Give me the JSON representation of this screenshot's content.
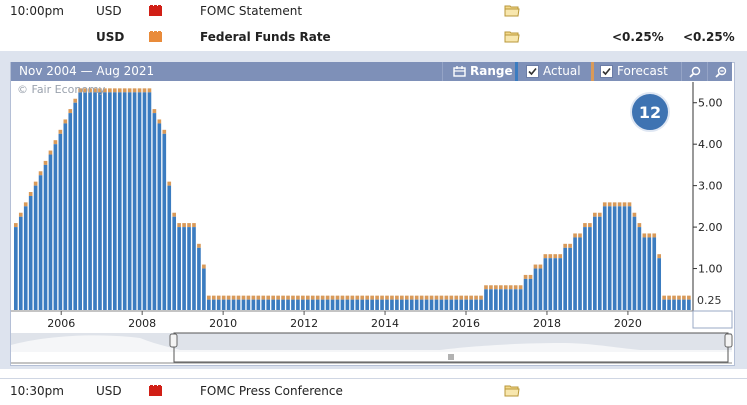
{
  "rows": {
    "top": {
      "time": "10:00pm",
      "currency": "USD",
      "event": "FOMC Statement"
    },
    "main": {
      "currency": "USD",
      "event": "Federal Funds Rate",
      "actual": "<0.25%",
      "forecast": "<0.25%"
    },
    "bottom": {
      "time": "10:30pm",
      "currency": "USD",
      "event": "FOMC Press Conference"
    }
  },
  "chart_header": {
    "range_text": "Nov 2004 — Aug 2021",
    "range_label": "Range",
    "actual_label": "Actual",
    "forecast_label": "Forecast"
  },
  "watermark": "© Fair Economy",
  "badge": "12",
  "current_value_label": "0.25",
  "colors": {
    "actual": "#3b7cc0",
    "forecast": "#d99a59",
    "impact_high": "#d11f16",
    "impact_medium": "#e98b3a",
    "header": "#7e90b8",
    "badge": "#3e73b2"
  },
  "icons": [
    "impact-high-icon",
    "impact-medium-icon",
    "folder-icon",
    "range-icon",
    "zoom-in-icon",
    "zoom-out-icon",
    "scroll-handle-icon"
  ],
  "chart_data": {
    "type": "bar",
    "x_ticks": [
      "2006",
      "2008",
      "2010",
      "2012",
      "2014",
      "2016",
      "2018",
      "2020"
    ],
    "y_ticks": [
      "1.00",
      "2.00",
      "3.00",
      "4.00",
      "5.00"
    ],
    "ylim": [
      0,
      5.5
    ],
    "series": [
      {
        "name": "Actual",
        "values": [
          2.0,
          2.25,
          2.5,
          2.75,
          3.0,
          3.25,
          3.5,
          3.75,
          4.0,
          4.25,
          4.5,
          4.75,
          5.0,
          5.25,
          5.25,
          5.25,
          5.25,
          5.25,
          5.25,
          5.25,
          5.25,
          5.25,
          5.25,
          5.25,
          5.25,
          5.25,
          5.25,
          5.25,
          4.75,
          4.5,
          4.25,
          3.0,
          2.25,
          2.0,
          2.0,
          2.0,
          2.0,
          1.5,
          1.0,
          0.25,
          0.25,
          0.25,
          0.25,
          0.25,
          0.25,
          0.25,
          0.25,
          0.25,
          0.25,
          0.25,
          0.25,
          0.25,
          0.25,
          0.25,
          0.25,
          0.25,
          0.25,
          0.25,
          0.25,
          0.25,
          0.25,
          0.25,
          0.25,
          0.25,
          0.25,
          0.25,
          0.25,
          0.25,
          0.25,
          0.25,
          0.25,
          0.25,
          0.25,
          0.25,
          0.25,
          0.25,
          0.25,
          0.25,
          0.25,
          0.25,
          0.25,
          0.25,
          0.25,
          0.25,
          0.25,
          0.25,
          0.25,
          0.25,
          0.25,
          0.25,
          0.25,
          0.25,
          0.25,
          0.25,
          0.25,
          0.5,
          0.5,
          0.5,
          0.5,
          0.5,
          0.5,
          0.5,
          0.5,
          0.75,
          0.75,
          1.0,
          1.0,
          1.25,
          1.25,
          1.25,
          1.25,
          1.5,
          1.5,
          1.75,
          1.75,
          2.0,
          2.0,
          2.25,
          2.25,
          2.5,
          2.5,
          2.5,
          2.5,
          2.5,
          2.5,
          2.25,
          2.0,
          1.75,
          1.75,
          1.75,
          1.25,
          0.25,
          0.25,
          0.25,
          0.25,
          0.25,
          0.25
        ]
      }
    ]
  }
}
